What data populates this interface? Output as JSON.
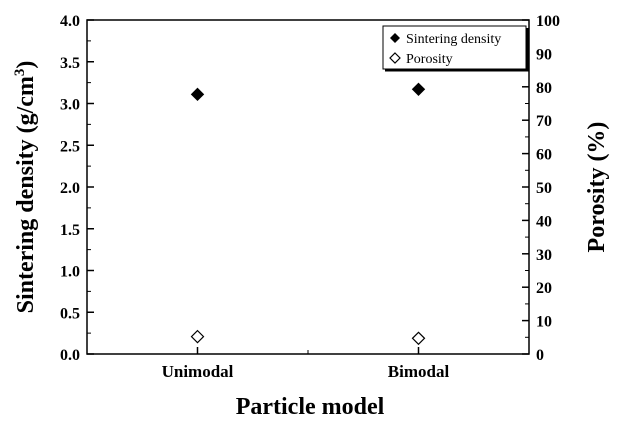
{
  "chart_data": {
    "type": "scatter",
    "categories": [
      "Unimodal",
      "Bimodal"
    ],
    "xlabel": "Particle model",
    "ylabel_left": "Sintering density (g/cm",
    "ylabel_left_sup": "3",
    "ylabel_left_close": ")",
    "ylabel_right": "Porosity (%)",
    "ylim_left": [
      0.0,
      4.0
    ],
    "ylim_right": [
      0,
      100
    ],
    "yticks_left": [
      "0.0",
      "0.5",
      "1.0",
      "1.5",
      "2.0",
      "2.5",
      "3.0",
      "3.5",
      "4.0"
    ],
    "yticks_right": [
      "0",
      "10",
      "20",
      "30",
      "40",
      "50",
      "60",
      "70",
      "80",
      "90",
      "100"
    ],
    "series": [
      {
        "name": "Sintering density",
        "axis": "left",
        "marker": "filled-diamond",
        "values": [
          3.11,
          3.17
        ]
      },
      {
        "name": "Porosity",
        "axis": "right",
        "marker": "open-diamond",
        "values": [
          5.2,
          4.7
        ]
      }
    ],
    "legend": "top-right",
    "grid": false
  }
}
